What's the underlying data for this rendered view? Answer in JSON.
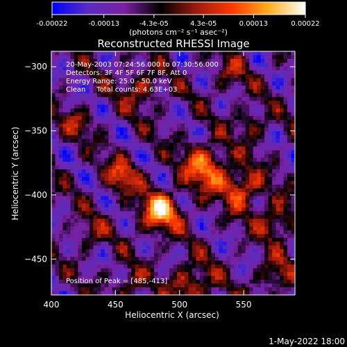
{
  "chart_data": {
    "type": "heatmap",
    "title": "Reconstructed RHESSI Image",
    "xlabel": "Heliocentric X (arcsec)",
    "ylabel": "Heliocentric Y (arcsec)",
    "xlim": [
      400,
      590
    ],
    "ylim": [
      -478,
      -288
    ],
    "x_ticks": [
      400,
      450,
      500,
      550
    ],
    "y_ticks": [
      -300,
      -350,
      -400,
      -450
    ],
    "colorbar": {
      "min": -0.00022,
      "max": 0.00022,
      "tick_values": [
        -0.00022,
        -0.00013,
        -4.3e-05,
        4.3e-05,
        0.00013,
        0.00022
      ],
      "tick_labels": [
        "-0.00022",
        "-0.00013",
        "-4.3e-05",
        "4.3e-05",
        "0.00013",
        "0.00022"
      ],
      "units": "(photons cm⁻² s⁻¹ asec⁻²)",
      "colormap": [
        "#0000ff",
        "#5a2dc0",
        "#7a20a0",
        "#000000",
        "#a01a10",
        "#ff3a00",
        "#ffb020",
        "#ffffff"
      ]
    },
    "annotations": {
      "time_range": "20-May-2003 07:24:56.000 to 07:30:56.000",
      "detectors": "Detectors: 3F 4F 5F 6F 7F 8F, Att 0",
      "energy_range": "Energy Range: 25.0 - 50.0 keV",
      "method": "Clean     Total counts: 4.63E+03",
      "peak": "Position of Peak = [485,-413]"
    },
    "hotspots": [
      {
        "x": 485,
        "y": -413,
        "amp": 1.0,
        "w": 11
      },
      {
        "x": 520,
        "y": -378,
        "amp": 0.85,
        "w": 12
      },
      {
        "x": 455,
        "y": -385,
        "amp": 0.65,
        "w": 9
      },
      {
        "x": 548,
        "y": -395,
        "amp": 0.75,
        "w": 11
      },
      {
        "x": 575,
        "y": -420,
        "amp": 0.55,
        "w": 10
      },
      {
        "x": 510,
        "y": -470,
        "amp": 0.6,
        "w": 12
      },
      {
        "x": 460,
        "y": -470,
        "amp": 0.45,
        "w": 8
      },
      {
        "x": 575,
        "y": -462,
        "amp": 0.5,
        "w": 9
      },
      {
        "x": 470,
        "y": -318,
        "amp": 0.5,
        "w": 10
      },
      {
        "x": 540,
        "y": -305,
        "amp": 0.35,
        "w": 9
      },
      {
        "x": 420,
        "y": -345,
        "amp": 0.4,
        "w": 8
      },
      {
        "x": 555,
        "y": -345,
        "amp": 0.4,
        "w": 9
      },
      {
        "x": 430,
        "y": -430,
        "amp": 0.35,
        "w": 8
      }
    ]
  },
  "footer": {
    "date": "1-May-2022 18:00"
  }
}
